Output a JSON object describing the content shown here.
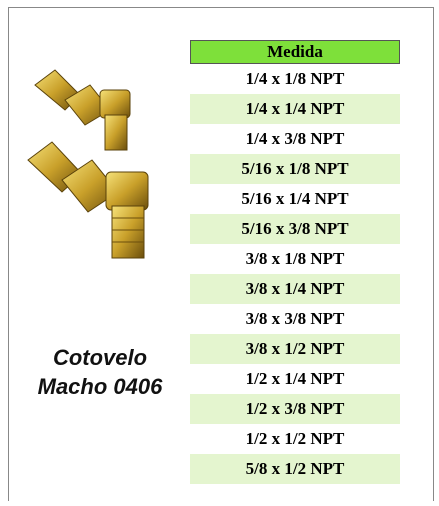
{
  "caption": [
    "Cotovelo",
    "Macho 0406"
  ],
  "table": {
    "header": "Medida",
    "rows": [
      "1/4 x 1/8 NPT",
      "1/4 x 1/4 NPT",
      "1/4 x 3/8 NPT",
      "5/16 x 1/8 NPT",
      "5/16 x 1/4 NPT",
      "5/16 x 3/8 NPT",
      "3/8 x 1/8 NPT",
      "3/8 x 1/4 NPT",
      "3/8 x 3/8 NPT",
      "3/8 x 1/2 NPT",
      "1/2 x 1/4 NPT",
      "1/2 x 3/8 NPT",
      "1/2 x 1/2 NPT",
      "5/8 x 1/2 NPT"
    ]
  }
}
